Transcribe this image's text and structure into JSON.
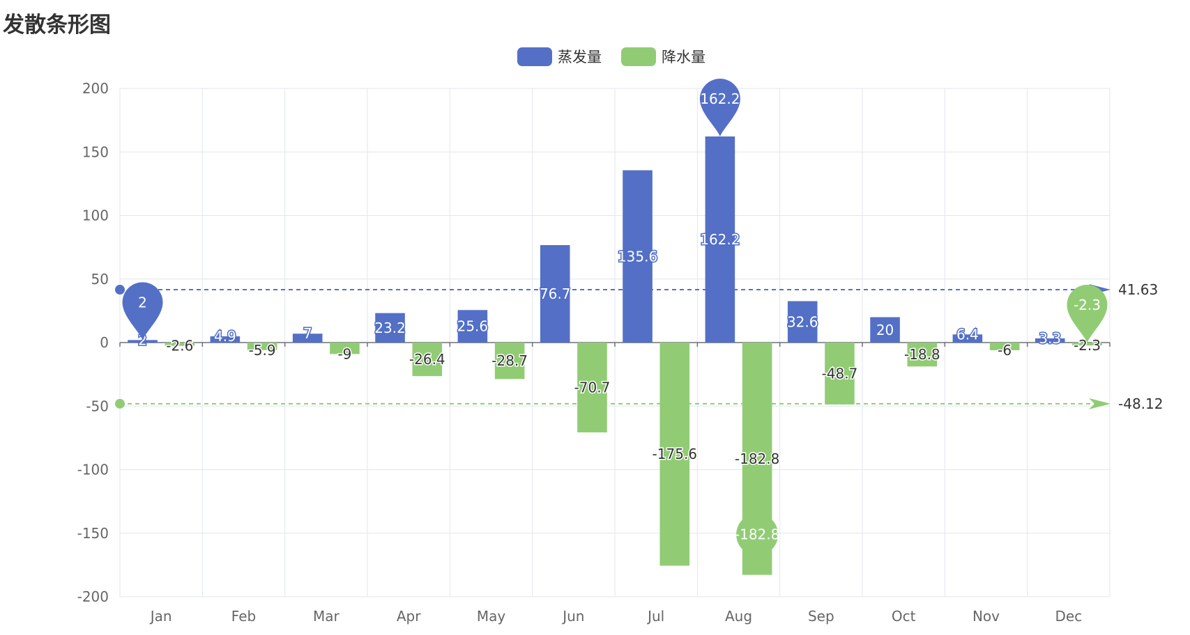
{
  "title": "发散条形图",
  "chart_data": {
    "type": "bar",
    "title": "发散条形图",
    "categories": [
      "Jan",
      "Feb",
      "Mar",
      "Apr",
      "May",
      "Jun",
      "Jul",
      "Aug",
      "Sep",
      "Oct",
      "Nov",
      "Dec"
    ],
    "series": [
      {
        "name": "蒸发量",
        "color": "#5470c6",
        "values": [
          2,
          4.9,
          7,
          23.2,
          25.6,
          76.7,
          135.6,
          162.2,
          32.6,
          20,
          6.4,
          3.3
        ],
        "mark_points": [
          {
            "label": "162.2",
            "category": "Aug",
            "value": 162.2,
            "kind": "max"
          },
          {
            "label": "2",
            "category": "Jan",
            "value": 2,
            "kind": "min"
          }
        ],
        "mark_line": {
          "label": "41.63",
          "value": 41.63,
          "kind": "average"
        }
      },
      {
        "name": "降水量",
        "color": "#91cc75",
        "values": [
          -2.6,
          -5.9,
          -9,
          -26.4,
          -28.7,
          -70.7,
          -175.6,
          -182.8,
          -48.7,
          -18.8,
          -6,
          -2.3
        ],
        "mark_points": [
          {
            "label": "-2.3",
            "category": "Dec",
            "value": -2.3,
            "kind": "max"
          },
          {
            "label": "-182.8",
            "category": "Aug",
            "value": -182.8,
            "kind": "min"
          }
        ],
        "mark_line": {
          "label": "-48.12",
          "value": -48.12,
          "kind": "average"
        }
      }
    ],
    "ylim": [
      -200,
      200
    ],
    "yticks": [
      200,
      150,
      100,
      50,
      0,
      -50,
      -100,
      -150,
      -200
    ],
    "xlabel": "",
    "ylabel": "",
    "grid": true,
    "legend_position": "top-center"
  }
}
